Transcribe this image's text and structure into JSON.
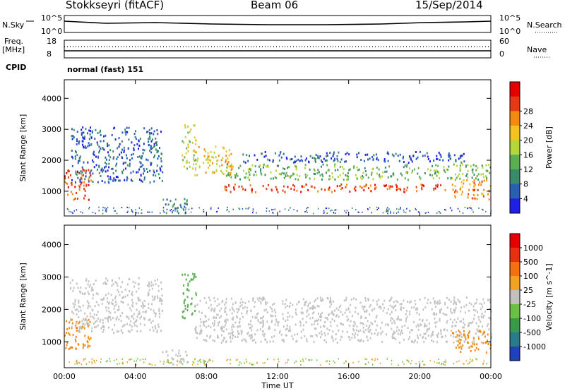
{
  "header": {
    "station": "Stokkseyri (fitACF)",
    "beam": "Beam 06",
    "date": "15/Sep/2014"
  },
  "noise_panel": {
    "left_label": "N.Sky",
    "right_label": "N.Search",
    "left_ticks": [
      "10^5",
      "10^0"
    ],
    "right_ticks": [
      "10^5",
      "10^0"
    ]
  },
  "freq_panel": {
    "left_label_line1": "Freq.",
    "left_label_line2": "[MHz]",
    "left_ticks": [
      "18",
      "8"
    ],
    "right_label": "Nave",
    "right_ticks": [
      "60",
      "0"
    ],
    "cpid_label": "CPID",
    "cpid_value": "normal (fast) 151"
  },
  "chart_data": [
    {
      "type": "heatmap",
      "title": "",
      "xlabel": "Time UT",
      "ylabel": "Slant Range [km]",
      "x_ticks": [
        "00:00",
        "04:00",
        "08:00",
        "12:00",
        "16:00",
        "20:00",
        "00:00"
      ],
      "y_ticks": [
        "1000",
        "2000",
        "3000",
        "4000"
      ],
      "xlim_hours": [
        0,
        24
      ],
      "ylim_km": [
        200,
        4600
      ],
      "colorbar": {
        "label": "Power [dB]",
        "ticks": [
          "4",
          "8",
          "12",
          "16",
          "20",
          "24",
          "28"
        ],
        "colors": [
          "#1f1fe6",
          "#2a5fb8",
          "#3b8a6c",
          "#5cae52",
          "#b4d63a",
          "#f2c320",
          "#f58a10",
          "#e63a10",
          "#e60000"
        ]
      },
      "echo_regions": [
        {
          "t0": 0.0,
          "t1": 1.5,
          "r0": 750,
          "r1": 1750,
          "level": 0.9
        },
        {
          "t0": 0.3,
          "t1": 5.5,
          "r0": 1300,
          "r1": 3100,
          "level": 0.15
        },
        {
          "t0": 6.6,
          "t1": 7.4,
          "r0": 1700,
          "r1": 3200,
          "level": 0.6
        },
        {
          "t0": 5.5,
          "t1": 7.0,
          "r0": 300,
          "r1": 800,
          "level": 0.25
        },
        {
          "t0": 7.3,
          "t1": 9.5,
          "r0": 1550,
          "r1": 2500,
          "level": 0.7
        },
        {
          "t0": 9.0,
          "t1": 21.5,
          "r0": 1000,
          "r1": 1250,
          "level": 0.95
        },
        {
          "t0": 9.0,
          "t1": 24.0,
          "r0": 1400,
          "r1": 1900,
          "level": 0.45
        },
        {
          "t0": 10.0,
          "t1": 22.5,
          "r0": 1950,
          "r1": 2300,
          "level": 0.15
        },
        {
          "t0": 21.8,
          "t1": 24.0,
          "r0": 700,
          "r1": 1400,
          "level": 0.75
        }
      ]
    },
    {
      "type": "heatmap",
      "title": "",
      "xlabel": "Time UT",
      "ylabel": "Slant Range [km]",
      "x_ticks": [
        "00:00",
        "04:00",
        "08:00",
        "12:00",
        "16:00",
        "20:00",
        "00:00"
      ],
      "y_ticks": [
        "1000",
        "2000",
        "3000",
        "4000"
      ],
      "xlim_hours": [
        0,
        24
      ],
      "ylim_km": [
        200,
        4600
      ],
      "colorbar": {
        "label": "Velocity [m s^-1]",
        "ticks": [
          "1000",
          "500",
          "100",
          "25",
          "-25",
          "-100",
          "-500",
          "-1000"
        ],
        "colors": [
          "#2040c0",
          "#2a7a8a",
          "#3a9a4a",
          "#6cc040",
          "#c0c0c0",
          "#f5a020",
          "#f57010",
          "#e63010",
          "#e60000"
        ]
      },
      "echo_regions": [
        {
          "t0": 0.0,
          "t1": 1.5,
          "r0": 750,
          "r1": 1750,
          "level": "negative"
        },
        {
          "t0": 0.3,
          "t1": 5.5,
          "r0": 1300,
          "r1": 3000,
          "level": "ground"
        },
        {
          "t0": 5.5,
          "t1": 7.0,
          "r0": 300,
          "r1": 800,
          "level": "ground"
        },
        {
          "t0": 6.6,
          "t1": 7.4,
          "r0": 1700,
          "r1": 3200,
          "level": "positive"
        },
        {
          "t0": 7.3,
          "t1": 24.0,
          "r0": 1000,
          "r1": 2400,
          "level": "ground"
        },
        {
          "t0": 21.8,
          "t1": 24.0,
          "r0": 700,
          "r1": 1400,
          "level": "negative"
        }
      ]
    }
  ]
}
